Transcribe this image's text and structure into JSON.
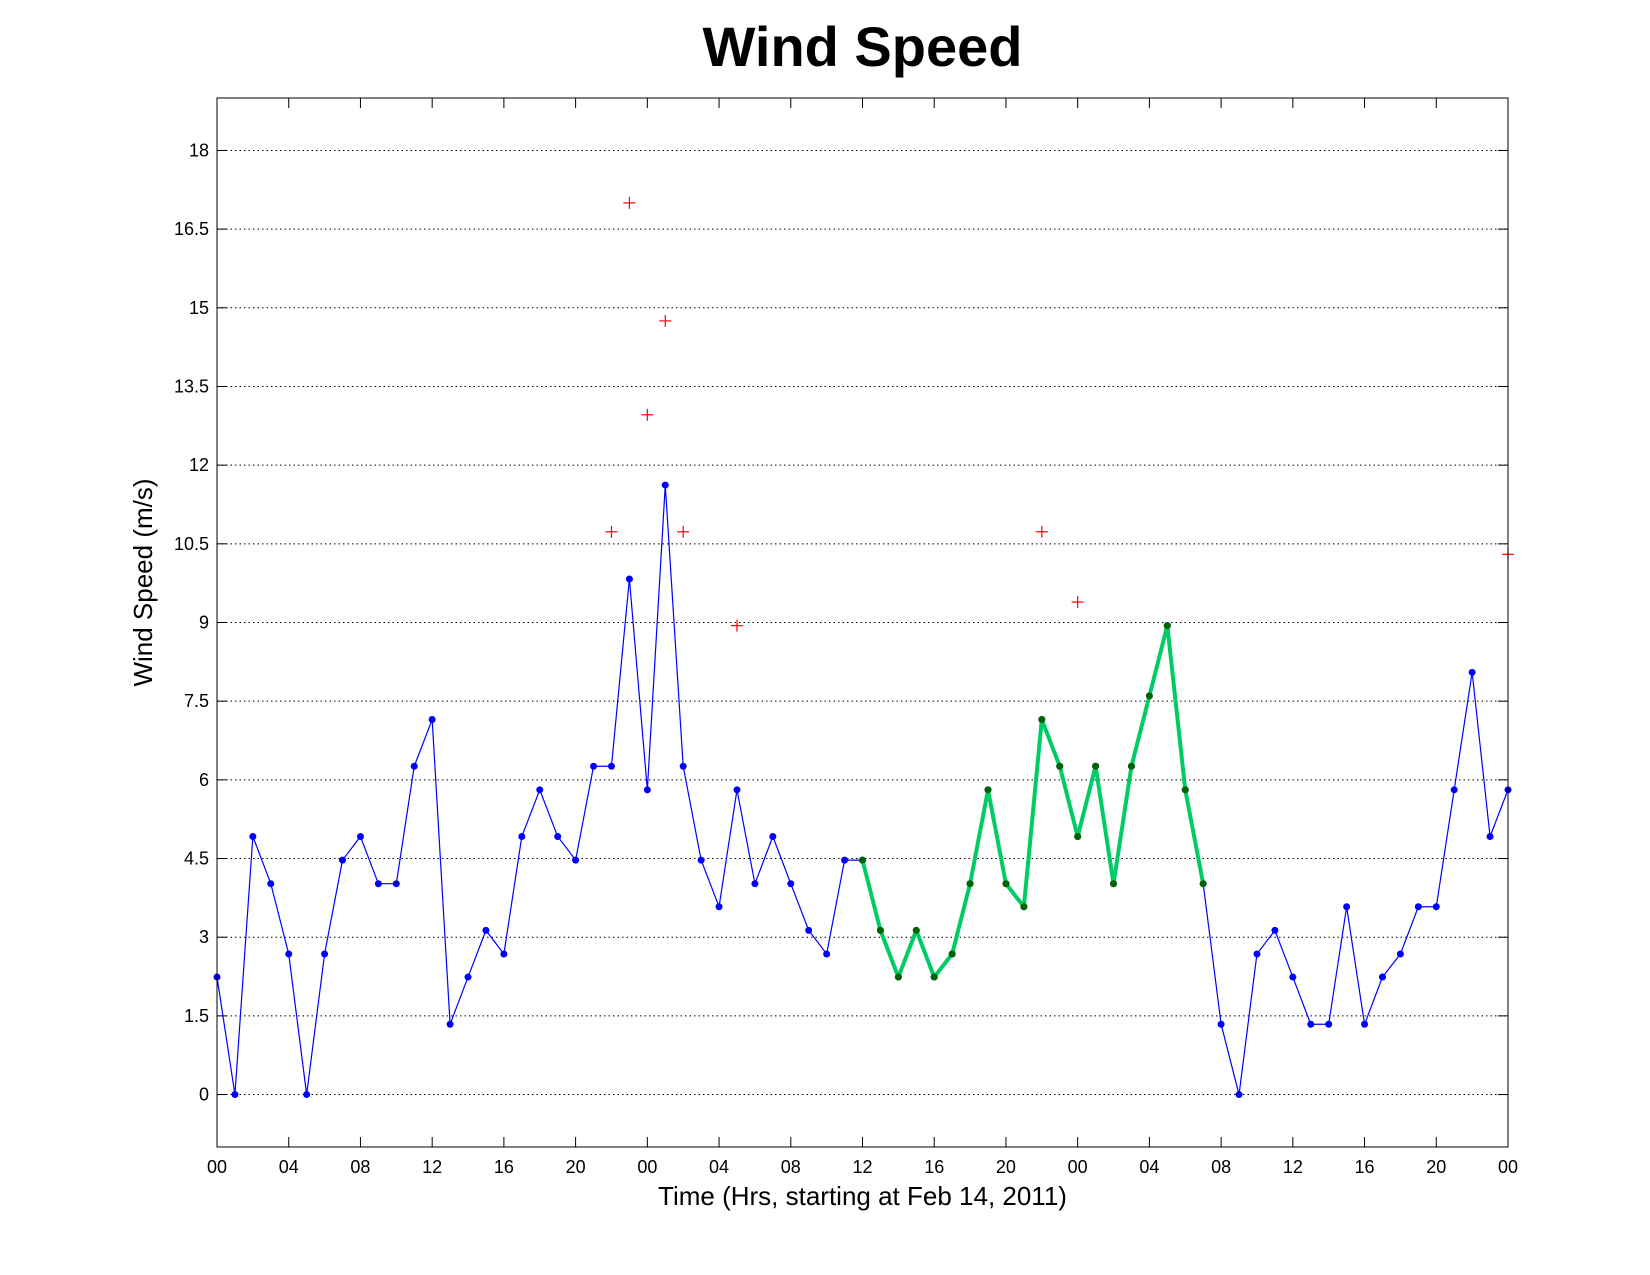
{
  "chart_data": {
    "type": "line",
    "title": "Wind Speed",
    "xlabel": "Time (Hrs, starting at Feb 14, 2011)",
    "ylabel": "Wind Speed (m/s)",
    "xlim": [
      0,
      72
    ],
    "ylim": [
      -1,
      19
    ],
    "grid": "y-dotted",
    "xticks": [
      {
        "x": 0,
        "label": "00"
      },
      {
        "x": 4,
        "label": "04"
      },
      {
        "x": 8,
        "label": "08"
      },
      {
        "x": 12,
        "label": "12"
      },
      {
        "x": 16,
        "label": "16"
      },
      {
        "x": 20,
        "label": "20"
      },
      {
        "x": 24,
        "label": "00"
      },
      {
        "x": 28,
        "label": "04"
      },
      {
        "x": 32,
        "label": "08"
      },
      {
        "x": 36,
        "label": "12"
      },
      {
        "x": 40,
        "label": "16"
      },
      {
        "x": 44,
        "label": "20"
      },
      {
        "x": 48,
        "label": "00"
      },
      {
        "x": 52,
        "label": "04"
      },
      {
        "x": 56,
        "label": "08"
      },
      {
        "x": 60,
        "label": "12"
      },
      {
        "x": 64,
        "label": "16"
      },
      {
        "x": 68,
        "label": "20"
      },
      {
        "x": 72,
        "label": "00"
      }
    ],
    "yticks": [
      {
        "y": 0,
        "label": "0"
      },
      {
        "y": 1.5,
        "label": "1.5"
      },
      {
        "y": 3,
        "label": "3"
      },
      {
        "y": 4.5,
        "label": "4.5"
      },
      {
        "y": 6,
        "label": "6"
      },
      {
        "y": 7.5,
        "label": "7.5"
      },
      {
        "y": 9,
        "label": "9"
      },
      {
        "y": 10.5,
        "label": "10.5"
      },
      {
        "y": 12,
        "label": "12"
      },
      {
        "y": 13.5,
        "label": "13.5"
      },
      {
        "y": 15,
        "label": "15"
      },
      {
        "y": 16.5,
        "label": "16.5"
      },
      {
        "y": 18,
        "label": "18"
      }
    ],
    "series": [
      {
        "style": "blue-line-dots",
        "color": "#0000ff",
        "x": [
          0,
          1,
          2,
          3,
          4,
          5,
          6,
          7,
          8,
          9,
          10,
          11,
          12,
          13,
          14,
          15,
          16,
          17,
          18,
          19,
          20,
          21,
          22,
          23,
          24,
          25,
          26,
          27,
          28,
          29,
          30,
          31,
          32,
          33,
          34,
          35,
          36,
          37,
          38,
          39,
          40,
          41,
          42,
          43,
          44,
          45,
          46,
          47,
          48,
          49,
          50,
          51,
          52,
          53,
          54,
          55,
          56,
          57,
          58,
          59,
          60,
          61,
          62,
          63,
          64,
          65,
          66,
          67,
          68,
          69,
          70,
          71,
          72
        ],
        "y": [
          2.24,
          0,
          4.92,
          4.02,
          2.68,
          0,
          2.68,
          4.47,
          4.92,
          4.02,
          4.02,
          6.26,
          7.15,
          1.34,
          2.24,
          3.13,
          2.68,
          4.92,
          5.81,
          4.92,
          4.47,
          6.26,
          6.26,
          9.83,
          5.81,
          11.62,
          6.26,
          4.47,
          3.58,
          5.81,
          4.02,
          4.92,
          4.02,
          3.13,
          2.68,
          4.47,
          4.47,
          3.13,
          2.24,
          3.13,
          2.24,
          2.68,
          4.02,
          5.81,
          4.02,
          3.58,
          7.15,
          6.26,
          4.92,
          6.26,
          4.02,
          6.26,
          7.6,
          8.94,
          5.81,
          4.02,
          1.34,
          0,
          2.68,
          3.13,
          2.24,
          1.34,
          1.34,
          3.58,
          1.34,
          2.24,
          2.68,
          3.58,
          3.58,
          5.81,
          8.05,
          4.92,
          5.81
        ]
      },
      {
        "style": "green-thick-line",
        "color": "#00cc66",
        "marker_color": "#006400",
        "x": [
          36,
          37,
          38,
          39,
          40,
          41,
          42,
          43,
          44,
          45,
          46,
          47,
          48,
          49,
          50,
          51,
          52,
          53,
          54,
          55
        ],
        "y": [
          4.47,
          3.13,
          2.24,
          3.13,
          2.24,
          2.68,
          4.02,
          5.81,
          4.02,
          3.58,
          7.15,
          6.26,
          4.92,
          6.26,
          4.02,
          6.26,
          7.6,
          8.94,
          5.81,
          4.02
        ]
      },
      {
        "style": "red-plus-markers",
        "color": "#ff0000",
        "x": [
          22,
          23,
          24,
          25,
          26,
          29,
          46,
          48,
          72
        ],
        "y": [
          10.73,
          17.0,
          12.96,
          14.75,
          10.73,
          8.94,
          10.73,
          9.39,
          10.3
        ]
      }
    ]
  }
}
